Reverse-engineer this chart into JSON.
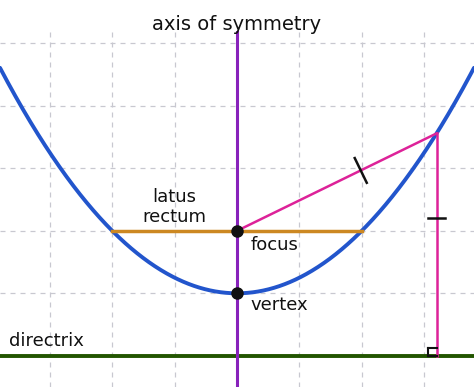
{
  "bg_color": "#ffffff",
  "grid_color": "#c8c8d0",
  "parabola_color": "#2255cc",
  "axis_sym_color": "#8822bb",
  "directrix_color": "#225500",
  "latus_rectum_color": "#cc8822",
  "focal_chord_color": "#dd2299",
  "dot_color": "#111111",
  "title_text": "axis of symmetry",
  "latus_rectum_label": "latus\nrectum",
  "focus_label": "focus",
  "vertex_label": "vertex",
  "directrix_label": "directrix",
  "p": 1.0,
  "xlim": [
    -3.8,
    3.8
  ],
  "ylim": [
    -1.5,
    4.2
  ],
  "vertex_x": 0,
  "vertex_y": 0,
  "focus_x": 0,
  "focus_y": 1.0,
  "directrix_y": -1.0,
  "lr_x1": -2.0,
  "lr_x2": 2.0,
  "focal_end_x": 3.2,
  "tick_t": 0.62
}
